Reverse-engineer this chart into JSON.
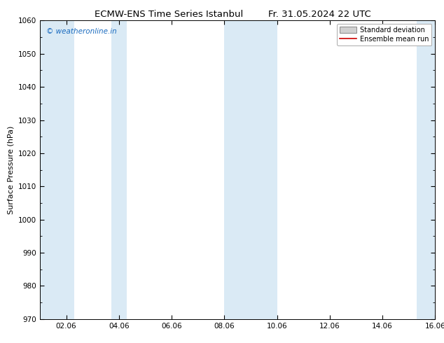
{
  "title_left": "ECMW-ENS Time Series Istanbul",
  "title_right": "Fr. 31.05.2024 22 UTC",
  "ylabel": "Surface Pressure (hPa)",
  "ylim": [
    970,
    1060
  ],
  "yticks": [
    970,
    980,
    990,
    1000,
    1010,
    1020,
    1030,
    1040,
    1050,
    1060
  ],
  "xlim_start": 0.0,
  "xlim_end": 15.0,
  "xtick_positions": [
    1.0,
    3.0,
    5.0,
    7.0,
    9.0,
    11.0,
    13.0,
    15.0
  ],
  "xtick_labels": [
    "02.06",
    "04.06",
    "06.06",
    "08.06",
    "10.06",
    "12.06",
    "14.06",
    "16.06"
  ],
  "shaded_bands": [
    {
      "xmin": 0.0,
      "xmax": 1.3
    },
    {
      "xmin": 2.7,
      "xmax": 3.3
    },
    {
      "xmin": 7.0,
      "xmax": 9.0
    },
    {
      "xmin": 14.3,
      "xmax": 15.0
    }
  ],
  "shade_color": "#daeaf5",
  "background_color": "#ffffff",
  "watermark_text": "© weatheronline.in",
  "watermark_color": "#1a6bbf",
  "legend_std_label": "Standard deviation",
  "legend_mean_label": "Ensemble mean run",
  "legend_std_facecolor": "#d0d0d0",
  "legend_std_edgecolor": "#888888",
  "legend_mean_color": "#cc0000",
  "title_fontsize": 9.5,
  "ylabel_fontsize": 8,
  "tick_fontsize": 7.5,
  "watermark_fontsize": 7.5,
  "legend_fontsize": 7
}
